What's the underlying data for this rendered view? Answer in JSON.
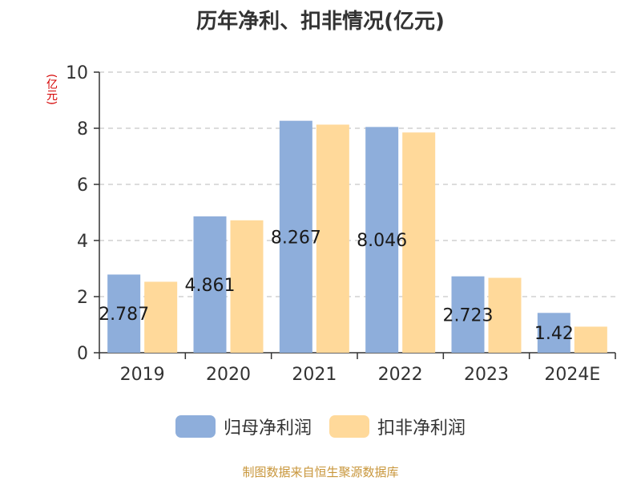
{
  "title": "历年净利、扣非情况(亿元)",
  "unit_label": "(亿元)",
  "source": "制图数据来自恒生聚源数据库",
  "legend": [
    {
      "label": "归母净利润",
      "color": "#8eaedb"
    },
    {
      "label": "扣非净利润",
      "color": "#ffd99a"
    }
  ],
  "chart_data": {
    "type": "bar",
    "title": "历年净利、扣非情况(亿元)",
    "categories": [
      "2019",
      "2020",
      "2021",
      "2022",
      "2023",
      "2024E"
    ],
    "series": [
      {
        "name": "归母净利润",
        "color": "#8eaedb",
        "values": [
          2.787,
          4.861,
          8.267,
          8.046,
          2.723,
          1.42
        ]
      },
      {
        "name": "扣非净利润",
        "color": "#ffd99a",
        "values": [
          2.53,
          4.72,
          8.13,
          7.85,
          2.67,
          0.93
        ]
      }
    ],
    "data_labels": [
      "2.787",
      "4.861",
      "8.267",
      "8.046",
      "2.723",
      "1.42"
    ],
    "ylim": [
      0,
      10
    ],
    "yticks": [
      0,
      2,
      4,
      6,
      8,
      10
    ],
    "grid": true,
    "legend_position": "bottom"
  }
}
